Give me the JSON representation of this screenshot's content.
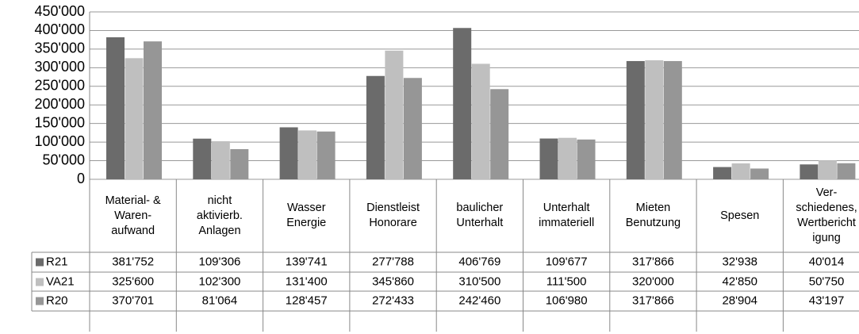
{
  "chart_data": {
    "type": "bar",
    "categories": [
      "Material- &\nWaren-\naufwand",
      "nicht\naktivierb.\nAnlagen",
      "Wasser\nEnergie",
      "Dienstleist\nHonorare",
      "baulicher\nUnterhalt",
      "Unterhalt\nimmateriell",
      "Mieten\nBenutzung",
      "Spesen",
      "Ver-\nschiedenes,\nWertbericht\nigung"
    ],
    "series": [
      {
        "name": "R21",
        "color": "#6b6b6b",
        "values": [
          381752,
          109306,
          139741,
          277788,
          406769,
          109677,
          317866,
          32938,
          40014
        ],
        "value_labels": [
          "381'752",
          "109'306",
          "139'741",
          "277'788",
          "406'769",
          "109'677",
          "317'866",
          "32'938",
          "40'014"
        ]
      },
      {
        "name": "VA21",
        "color": "#bfbfbf",
        "values": [
          325600,
          102300,
          131400,
          345860,
          310500,
          111500,
          320000,
          42850,
          50750
        ],
        "value_labels": [
          "325'600",
          "102'300",
          "131'400",
          "345'860",
          "310'500",
          "111'500",
          "320'000",
          "42'850",
          "50'750"
        ]
      },
      {
        "name": "R20",
        "color": "#969696",
        "values": [
          370701,
          81064,
          128457,
          272433,
          242460,
          106980,
          317866,
          28904,
          43197
        ],
        "value_labels": [
          "370'701",
          "81'064",
          "128'457",
          "272'433",
          "242'460",
          "106'980",
          "317'866",
          "28'904",
          "43'197"
        ]
      }
    ],
    "ylim": [
      0,
      450000
    ],
    "yticks": [
      0,
      {
        "value": 50000,
        "label": "50'000"
      },
      {
        "value": 100000,
        "label": "100'000"
      },
      {
        "value": 150000,
        "label": "150'000"
      },
      {
        "value": 200000,
        "label": "200'000"
      },
      {
        "value": 250000,
        "label": "250'000"
      },
      {
        "value": 300000,
        "label": "300'000"
      },
      {
        "value": 350000,
        "label": "350'000"
      },
      {
        "value": 400000,
        "label": "400'000"
      },
      {
        "value": 450000,
        "label": "450'000"
      }
    ],
    "grid": true
  }
}
